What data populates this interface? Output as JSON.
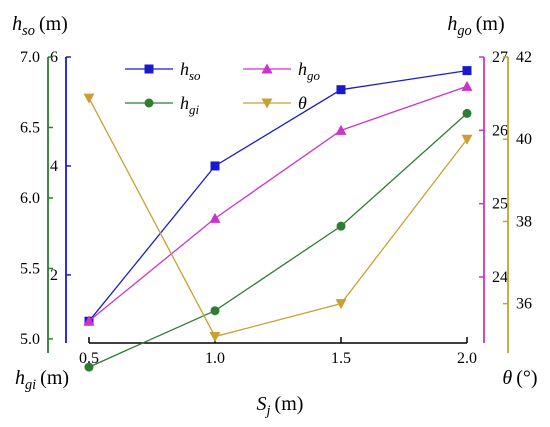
{
  "chart_data": {
    "type": "line",
    "x": [
      0.5,
      1.0,
      1.5,
      2.0
    ],
    "x_ticks": [
      "0.5",
      "1.0",
      "1.5",
      "2.0"
    ],
    "xlim": [
      0.5,
      2.0
    ],
    "xlabel": {
      "main": "S",
      "sub": "j",
      "unit": "(m)"
    },
    "grid": false,
    "legend_position": "top-left",
    "axes": {
      "hso": {
        "side": "left",
        "label": {
          "main": "h",
          "sub": "so",
          "unit": "(m)"
        },
        "ylim": [
          0.75,
          6.0
        ],
        "ticks": [
          2,
          4,
          6
        ],
        "tick_labels": [
          "2",
          "4",
          "6"
        ],
        "color": "#1a1acc"
      },
      "hgi": {
        "side": "left",
        "label": {
          "main": "h",
          "sub": "gi",
          "unit": "(m)"
        },
        "ylim": [
          4.9,
          7.0
        ],
        "ticks": [
          5.0,
          5.5,
          6.0,
          6.5,
          7.0
        ],
        "tick_labels": [
          "5.0",
          "5.5",
          "6.0",
          "6.5",
          "7.0"
        ],
        "color": "#2e7d32"
      },
      "hgo": {
        "side": "right",
        "label": {
          "main": "h",
          "sub": "go",
          "unit": "(m)"
        },
        "ylim": [
          23.1,
          27.0
        ],
        "ticks": [
          24,
          25,
          26,
          27
        ],
        "tick_labels": [
          "24",
          "25",
          "26",
          "27"
        ],
        "color": "#cc33cc"
      },
      "theta": {
        "side": "right",
        "label": {
          "main": "θ",
          "sub": "",
          "unit": "(°)"
        },
        "ylim": [
          34.8,
          42.0
        ],
        "ticks": [
          36,
          38,
          40,
          42
        ],
        "tick_labels": [
          "36",
          "38",
          "40",
          "42"
        ],
        "color": "#c8a033"
      }
    },
    "series": [
      {
        "name_main": "h",
        "name_sub": "so",
        "axis": "hso",
        "values": [
          1.15,
          4.0,
          5.4,
          5.75
        ],
        "color": "#1a1acc",
        "marker": "square"
      },
      {
        "name_main": "h",
        "name_sub": "go",
        "axis": "hgo",
        "values": [
          23.4,
          24.8,
          26.0,
          26.6
        ],
        "color": "#cc33cc",
        "marker": "triangle-up"
      },
      {
        "name_main": "h",
        "name_sub": "gi",
        "axis": "hgi",
        "values": [
          4.8,
          5.2,
          5.8,
          6.6
        ],
        "color": "#2e7d32",
        "marker": "circle"
      },
      {
        "name_main": "θ",
        "name_sub": "",
        "axis": "theta",
        "values": [
          41.0,
          35.2,
          36.0,
          40.0
        ],
        "color": "#c8a033",
        "marker": "triangle-down"
      }
    ]
  }
}
